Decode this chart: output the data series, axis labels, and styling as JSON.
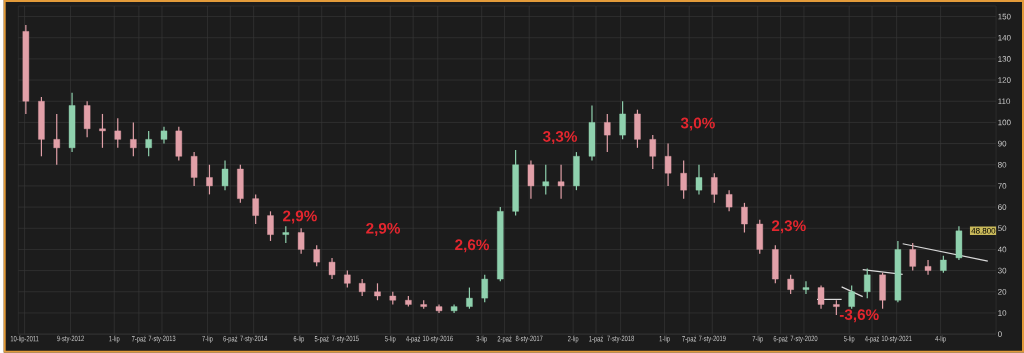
{
  "chart_data": {
    "type": "candlestick",
    "x": [
      "2011-07",
      "2011-09",
      "2011-11",
      "2012-01",
      "2012-03",
      "2012-05",
      "2012-07",
      "2012-09",
      "2012-11",
      "2013-01",
      "2013-03",
      "2013-05",
      "2013-07",
      "2013-09",
      "2013-11",
      "2014-01",
      "2014-03",
      "2014-05",
      "2014-07",
      "2014-09",
      "2014-11",
      "2015-01",
      "2015-03",
      "2015-05",
      "2015-07",
      "2015-09",
      "2015-11",
      "2016-01",
      "2016-03",
      "2016-05",
      "2016-07",
      "2016-09",
      "2016-11",
      "2017-01",
      "2017-03",
      "2017-05",
      "2017-07",
      "2017-09",
      "2017-11",
      "2018-01",
      "2018-03",
      "2018-05",
      "2018-07",
      "2018-09",
      "2018-11",
      "2019-01",
      "2019-03",
      "2019-05",
      "2019-07",
      "2019-09",
      "2019-11",
      "2020-01",
      "2020-03",
      "2020-05",
      "2020-07",
      "2020-09",
      "2020-11",
      "2021-01",
      "2021-03",
      "2021-05",
      "2021-07",
      "2021-09"
    ],
    "ohlc": [
      [
        143,
        146,
        104,
        110
      ],
      [
        110,
        112,
        84,
        92
      ],
      [
        92,
        104,
        80,
        88
      ],
      [
        88,
        114,
        86,
        108
      ],
      [
        108,
        110,
        93,
        97
      ],
      [
        97,
        104,
        88,
        96
      ],
      [
        96,
        102,
        88,
        92
      ],
      [
        92,
        100,
        84,
        88
      ],
      [
        88,
        96,
        84,
        92
      ],
      [
        92,
        98,
        90,
        96
      ],
      [
        96,
        98,
        82,
        84
      ],
      [
        84,
        86,
        70,
        74
      ],
      [
        74,
        80,
        66,
        70
      ],
      [
        70,
        82,
        68,
        78
      ],
      [
        78,
        80,
        62,
        64
      ],
      [
        64,
        66,
        52,
        56
      ],
      [
        56,
        58,
        44,
        47
      ],
      [
        47,
        51,
        43,
        48
      ],
      [
        48,
        50,
        38,
        40
      ],
      [
        40,
        42,
        32,
        34
      ],
      [
        34,
        36,
        26,
        28
      ],
      [
        28,
        30,
        22,
        24
      ],
      [
        24,
        26,
        18,
        20
      ],
      [
        20,
        24,
        16,
        18
      ],
      [
        18,
        20,
        14,
        16
      ],
      [
        16,
        18,
        13,
        14
      ],
      [
        14,
        16,
        12,
        13
      ],
      [
        13,
        14,
        10,
        11
      ],
      [
        11,
        14,
        10,
        13
      ],
      [
        13,
        22,
        12,
        17
      ],
      [
        17,
        28,
        15,
        26
      ],
      [
        26,
        60,
        25,
        58
      ],
      [
        58,
        87,
        56,
        80
      ],
      [
        80,
        82,
        64,
        70
      ],
      [
        70,
        80,
        66,
        72
      ],
      [
        72,
        80,
        64,
        70
      ],
      [
        70,
        86,
        68,
        84
      ],
      [
        84,
        108,
        82,
        100
      ],
      [
        100,
        104,
        86,
        94
      ],
      [
        94,
        110,
        92,
        104
      ],
      [
        104,
        106,
        88,
        92
      ],
      [
        92,
        94,
        78,
        84
      ],
      [
        84,
        90,
        70,
        76
      ],
      [
        76,
        82,
        64,
        68
      ],
      [
        68,
        80,
        66,
        74
      ],
      [
        74,
        76,
        62,
        66
      ],
      [
        66,
        68,
        58,
        60
      ],
      [
        60,
        62,
        48,
        52
      ],
      [
        52,
        54,
        38,
        40
      ],
      [
        40,
        42,
        24,
        26
      ],
      [
        26,
        28,
        19,
        21
      ],
      [
        21,
        25,
        19,
        22
      ],
      [
        22,
        23,
        12,
        14
      ],
      [
        14,
        16,
        9,
        13
      ],
      [
        13,
        23,
        12,
        20
      ],
      [
        20,
        31,
        17,
        28
      ],
      [
        28,
        29,
        12,
        16
      ],
      [
        16,
        44,
        15,
        40
      ],
      [
        40,
        43,
        30,
        32
      ],
      [
        32,
        35,
        28,
        30
      ],
      [
        30,
        37,
        29,
        35
      ],
      [
        36,
        51,
        35,
        48.8
      ]
    ],
    "series": [
      {
        "type": "line",
        "color": "#d9d9d9",
        "x": [
          "2020-02-28",
          "2020-06-05"
        ],
        "values": [
          16.4,
          16.4
        ]
      },
      {
        "type": "line",
        "color": "#d9d9d9",
        "x": [
          "2020-06-05",
          "2020-08-28"
        ],
        "values": [
          22.3,
          17.7
        ]
      },
      {
        "type": "line",
        "color": "#d9d9d9",
        "x": [
          "2020-08-28",
          "2021-02-03"
        ],
        "values": [
          30.5,
          28.2
        ]
      },
      {
        "type": "line",
        "color": "#d9d9d9",
        "x": [
          "2021-02-03",
          "2022-01-08"
        ],
        "values": [
          42.7,
          34.5
        ]
      }
    ],
    "xlim": [
      "2011-06-15",
      "2022-02-10"
    ],
    "ylim": [
      0,
      155
    ],
    "xticks": [
      {
        "value": "2011-07-10",
        "label": "10-lip-2011"
      },
      {
        "value": "2012-01-09",
        "label": "9-sty-2012"
      },
      {
        "value": "2012-07-01",
        "label": "1-lip"
      },
      {
        "value": "2012-10-07",
        "label": "7-paź"
      },
      {
        "value": "2013-01-07",
        "label": "7-sty-2013"
      },
      {
        "value": "2013-07-07",
        "label": "7-lip"
      },
      {
        "value": "2013-10-06",
        "label": "6-paź"
      },
      {
        "value": "2014-01-07",
        "label": "7-sty-2014"
      },
      {
        "value": "2014-07-06",
        "label": "6-lip"
      },
      {
        "value": "2014-10-05",
        "label": "5-paź"
      },
      {
        "value": "2015-01-07",
        "label": "7-sty-2015"
      },
      {
        "value": "2015-07-05",
        "label": "5-lip"
      },
      {
        "value": "2015-10-04",
        "label": "4-paź"
      },
      {
        "value": "2016-01-10",
        "label": "10-sty-2016"
      },
      {
        "value": "2016-07-03",
        "label": "3-lip"
      },
      {
        "value": "2016-10-02",
        "label": "2-paź"
      },
      {
        "value": "2017-01-08",
        "label": "8-sty-2017"
      },
      {
        "value": "2017-07-02",
        "label": "2-lip"
      },
      {
        "value": "2017-10-01",
        "label": "1-paź"
      },
      {
        "value": "2018-01-07",
        "label": "7-sty-2018"
      },
      {
        "value": "2018-07-01",
        "label": "1-lip"
      },
      {
        "value": "2018-10-07",
        "label": "7-paź"
      },
      {
        "value": "2019-01-07",
        "label": "7-sty-2019"
      },
      {
        "value": "2019-07-07",
        "label": "7-lip"
      },
      {
        "value": "2019-10-06",
        "label": "6-paź"
      },
      {
        "value": "2020-01-07",
        "label": "7-sty-2020"
      },
      {
        "value": "2020-07-05",
        "label": "5-lip"
      },
      {
        "value": "2020-10-04",
        "label": "4-paź"
      },
      {
        "value": "2021-01-10",
        "label": "10-sty-2021"
      },
      {
        "value": "2021-07-04",
        "label": "4-lip"
      }
    ],
    "yticks": [
      0,
      10,
      20,
      30,
      40,
      50,
      60,
      70,
      80,
      90,
      100,
      110,
      120,
      130,
      140,
      150
    ],
    "grid": true,
    "annotations": [
      "2,9%",
      "2,9%",
      "2,6%",
      "3,3%",
      "3,0%",
      "2,3%",
      "-3,6%",
      "48.800"
    ]
  }
}
